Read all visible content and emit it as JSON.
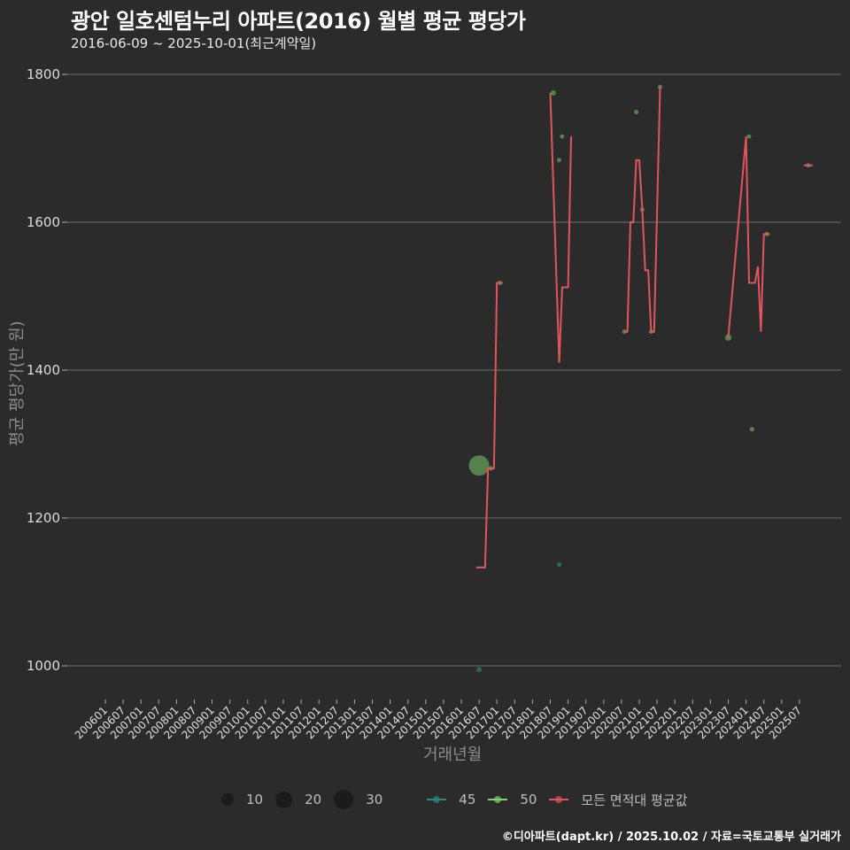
{
  "header": {
    "title": "광안 일호센텀누리 아파트(2016) 월별 평균 평당가",
    "subtitle": "2016-06-09 ~ 2025-10-01(최근계약일)"
  },
  "axes": {
    "ylabel": "평균 평당가(만 원)",
    "xlabel": "거래년월"
  },
  "legend": {
    "size_items": [
      {
        "label": "10",
        "size": 14
      },
      {
        "label": "20",
        "size": 20
      },
      {
        "label": "30",
        "size": 24
      }
    ],
    "color_items": [
      {
        "label": "45",
        "color": "#2a8a7e"
      },
      {
        "label": "50",
        "color": "#7fd66b"
      },
      {
        "label": "모든 면적대 평균값",
        "color": "#e0555f"
      }
    ]
  },
  "footer": {
    "credit": "©디아파트(dapt.kr) / 2025.10.02 / 자료=국토교통부 실거래가"
  },
  "colors": {
    "background": "#2b2b2b",
    "grid": "#6e6e6e",
    "avg_line": "#e0555f",
    "area_45": "#2a8a7e",
    "area_50": "#6fae5e"
  },
  "chart_data": {
    "type": "line",
    "title": "광안 일호센텀누리 아파트(2016) 월별 평균 평당가",
    "subtitle": "2016-06-09 ~ 2025-10-01(최근계약일)",
    "xlabel": "거래년월",
    "ylabel": "평균 평당가(만 원)",
    "ylim": [
      960,
      1810
    ],
    "yticks": [
      1000,
      1200,
      1400,
      1600,
      1800
    ],
    "grid": true,
    "legend_position": "bottom",
    "x_tick_labels": [
      "200601",
      "200607",
      "200701",
      "200707",
      "200801",
      "200807",
      "200901",
      "200907",
      "201001",
      "201007",
      "201101",
      "201107",
      "201201",
      "201207",
      "201301",
      "201307",
      "201401",
      "201407",
      "201501",
      "201507",
      "201601",
      "201607",
      "201701",
      "201707",
      "201801",
      "201807",
      "201901",
      "201907",
      "202001",
      "202007",
      "202101",
      "202107",
      "202201",
      "202207",
      "202301",
      "202307",
      "202401",
      "202407",
      "202501",
      "202507"
    ],
    "series": [
      {
        "name": "모든 면적대 평균값",
        "kind": "line",
        "points": [
          {
            "x": "201606",
            "y": 1133
          },
          {
            "x": "201609",
            "y": 1133
          },
          {
            "x": "201610",
            "y": 1267
          },
          {
            "x": "201612",
            "y": 1267
          },
          {
            "x": "201701",
            "y": 1518
          },
          {
            "x": "201703",
            "y": 1518
          },
          {
            "x": "201807",
            "y": 1775
          },
          {
            "x": "201810",
            "y": 1410
          },
          {
            "x": "201811",
            "y": 1512
          },
          {
            "x": "201901",
            "y": 1512
          },
          {
            "x": "201902",
            "y": 1716
          },
          {
            "x": "202008",
            "y": 1452
          },
          {
            "x": "202009",
            "y": 1452
          },
          {
            "x": "202010",
            "y": 1600
          },
          {
            "x": "202011",
            "y": 1600
          },
          {
            "x": "202012",
            "y": 1684
          },
          {
            "x": "202101",
            "y": 1684
          },
          {
            "x": "202102",
            "y": 1617
          },
          {
            "x": "202103",
            "y": 1535
          },
          {
            "x": "202104",
            "y": 1535
          },
          {
            "x": "202105",
            "y": 1452
          },
          {
            "x": "202106",
            "y": 1452
          },
          {
            "x": "202108",
            "y": 1783
          },
          {
            "x": "202307",
            "y": 1444
          },
          {
            "x": "202401",
            "y": 1716
          },
          {
            "x": "202402",
            "y": 1518
          },
          {
            "x": "202404",
            "y": 1518
          },
          {
            "x": "202405",
            "y": 1540
          },
          {
            "x": "202406",
            "y": 1452
          },
          {
            "x": "202407",
            "y": 1584
          },
          {
            "x": "202409",
            "y": 1584
          },
          {
            "x": "202510",
            "y": 1677
          }
        ]
      },
      {
        "name": "45",
        "kind": "scatter",
        "points": [
          {
            "x": "201607",
            "y": 995,
            "count": 2
          },
          {
            "x": "201810",
            "y": 1137,
            "count": 1
          }
        ]
      },
      {
        "name": "50",
        "kind": "scatter",
        "points": [
          {
            "x": "201607",
            "y": 1271,
            "count": 30
          },
          {
            "x": "201611",
            "y": 1267,
            "count": 1
          },
          {
            "x": "201702",
            "y": 1518,
            "count": 1
          },
          {
            "x": "201808",
            "y": 1775,
            "count": 2
          },
          {
            "x": "201810",
            "y": 1684,
            "count": 1
          },
          {
            "x": "201811",
            "y": 1716,
            "count": 1
          },
          {
            "x": "202008",
            "y": 1452,
            "count": 1
          },
          {
            "x": "202012",
            "y": 1749,
            "count": 1
          },
          {
            "x": "202102",
            "y": 1617,
            "count": 1
          },
          {
            "x": "202105",
            "y": 1452,
            "count": 1
          },
          {
            "x": "202108",
            "y": 1783,
            "count": 1
          },
          {
            "x": "202307",
            "y": 1444,
            "count": 3
          },
          {
            "x": "202402",
            "y": 1716,
            "count": 1
          },
          {
            "x": "202403",
            "y": 1320,
            "count": 1
          },
          {
            "x": "202408",
            "y": 1584,
            "count": 1
          },
          {
            "x": "202510",
            "y": 1677,
            "count": 1
          }
        ]
      }
    ]
  }
}
